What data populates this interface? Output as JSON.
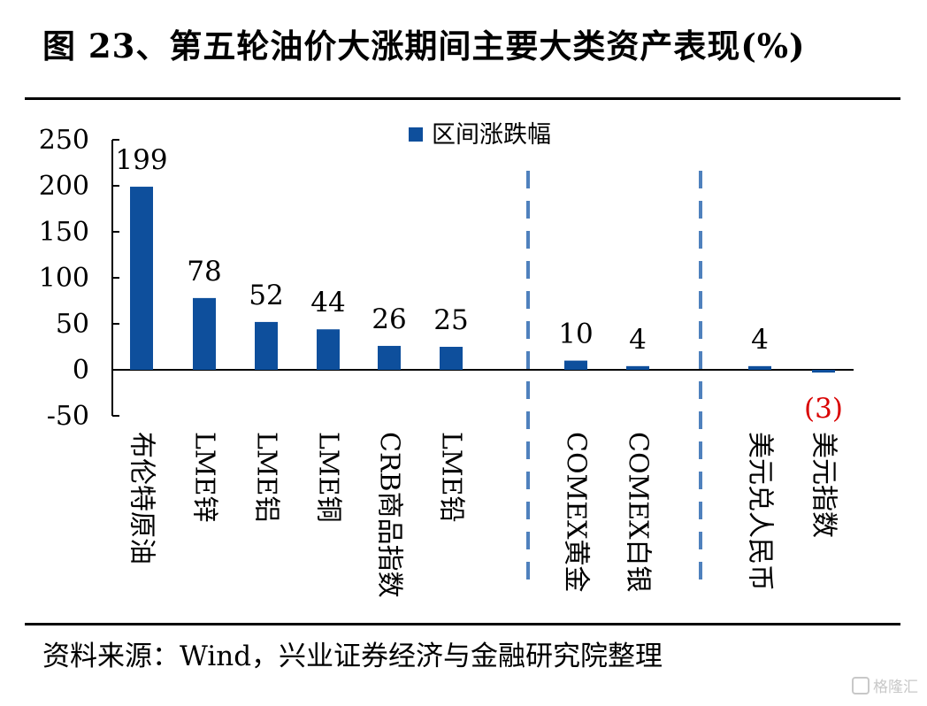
{
  "title": "图 23、第五轮油价大涨期间主要大类资产表现(%)",
  "source": "资料来源：Wind，兴业证券经济与金融研究院整理",
  "watermark": "格隆汇",
  "colors": {
    "bar": "#0e4f9c",
    "negative_label": "#d90000",
    "divider": "#4f81bd",
    "axis": "#000000"
  },
  "chart_data": {
    "type": "bar",
    "categories": [
      "布伦特原油",
      "LME锌",
      "LME铝",
      "LME铜",
      "CRB商品指数",
      "LME铅",
      "COMEX黄金",
      "COMEX白银",
      "美元兑人民币",
      "美元指数"
    ],
    "series": [
      {
        "name": "区间涨跌幅",
        "values": [
          199,
          78,
          52,
          44,
          26,
          25,
          10,
          4,
          4,
          -3
        ]
      }
    ],
    "data_labels": [
      "199",
      "78",
      "52",
      "44",
      "26",
      "25",
      "10",
      "4",
      "4",
      "(3)"
    ],
    "y_ticks": [
      "250",
      "200",
      "150",
      "100",
      "50",
      "0",
      "-50"
    ],
    "ylim": [
      -50,
      250
    ],
    "legend_position": "top-center",
    "grid": false,
    "group_dividers": "dashed vertical lines separating metals, precious metals and currencies"
  }
}
